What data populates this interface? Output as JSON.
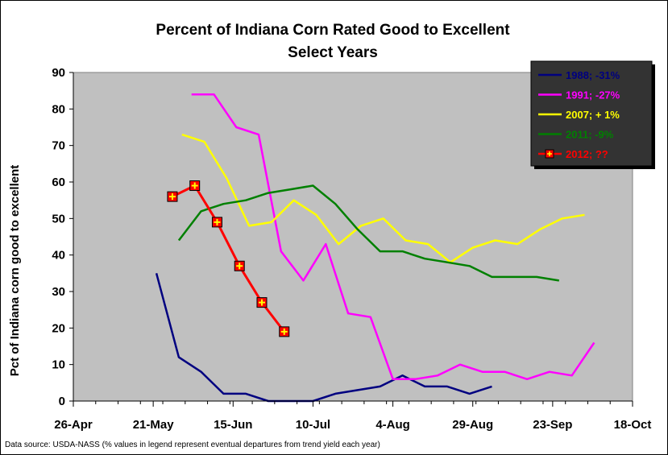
{
  "chart_data": {
    "type": "line",
    "title": "Percent of Indiana Corn Rated Good to Excellent",
    "subtitle": "Select Years",
    "ylabel": "Pct of Indiana corn good to excellent",
    "xlabel": "",
    "ylim": [
      0,
      90
    ],
    "yticks": [
      0,
      10,
      20,
      30,
      40,
      50,
      60,
      70,
      80,
      90
    ],
    "xlim": [
      "26-Apr",
      "18-Oct"
    ],
    "xticks": [
      "26-Apr",
      "21-May",
      "15-Jun",
      "10-Jul",
      "4-Aug",
      "29-Aug",
      "23-Sep",
      "18-Oct"
    ],
    "grid": false,
    "legend_position": "top-right",
    "plot_background": "#c0c0c0",
    "series": [
      {
        "name": "1988; -31%",
        "color": "#000080",
        "marker": "none",
        "x": [
          "22-May",
          "29-May",
          "5-Jun",
          "12-Jun",
          "19-Jun",
          "26-Jun",
          "3-Jul",
          "10-Jul",
          "17-Jul",
          "24-Jul",
          "31-Jul",
          "7-Aug",
          "14-Aug",
          "21-Aug",
          "28-Aug",
          "4-Sep"
        ],
        "values": [
          35,
          12,
          8,
          2,
          2,
          0,
          0,
          0,
          2,
          3,
          4,
          7,
          4,
          4,
          2,
          4
        ]
      },
      {
        "name": "1991; -27%",
        "color": "#ff00ff",
        "marker": "none",
        "x": [
          "2-Jun",
          "9-Jun",
          "16-Jun",
          "23-Jun",
          "30-Jun",
          "7-Jul",
          "14-Jul",
          "21-Jul",
          "28-Jul",
          "4-Aug",
          "11-Aug",
          "18-Aug",
          "25-Aug",
          "1-Sep",
          "8-Sep",
          "15-Sep",
          "22-Sep",
          "29-Sep",
          "6-Oct"
        ],
        "values": [
          84,
          84,
          75,
          73,
          41,
          33,
          43,
          24,
          23,
          6,
          6,
          7,
          10,
          8,
          8,
          6,
          8,
          7,
          16
        ]
      },
      {
        "name": "2007; + 1%",
        "color": "#ffff00",
        "marker": "none",
        "x": [
          "30-May",
          "6-Jun",
          "13-Jun",
          "20-Jun",
          "27-Jun",
          "4-Jul",
          "11-Jul",
          "18-Jul",
          "25-Jul",
          "1-Aug",
          "8-Aug",
          "15-Aug",
          "22-Aug",
          "29-Aug",
          "5-Sep",
          "12-Sep",
          "19-Sep",
          "26-Sep",
          "3-Oct"
        ],
        "values": [
          73,
          71,
          61,
          48,
          49,
          55,
          51,
          43,
          48,
          50,
          44,
          43,
          38,
          42,
          44,
          43,
          47,
          50,
          51
        ]
      },
      {
        "name": "2011; -9%",
        "color": "#008000",
        "marker": "none",
        "x": [
          "29-May",
          "5-Jun",
          "12-Jun",
          "19-Jun",
          "26-Jun",
          "3-Jul",
          "10-Jul",
          "17-Jul",
          "24-Jul",
          "31-Jul",
          "7-Aug",
          "14-Aug",
          "21-Aug",
          "28-Aug",
          "4-Sep",
          "11-Sep",
          "18-Sep",
          "25-Sep"
        ],
        "values": [
          44,
          52,
          54,
          55,
          57,
          58,
          59,
          54,
          47,
          41,
          41,
          39,
          38,
          37,
          34,
          34,
          34,
          33
        ]
      },
      {
        "name": "2012; ??",
        "color": "#ff0000",
        "marker": "square-plus",
        "x": [
          "27-May",
          "3-Jun",
          "10-Jun",
          "17-Jun",
          "24-Jun",
          "1-Jul"
        ],
        "values": [
          56,
          59,
          49,
          37,
          27,
          19
        ]
      }
    ],
    "annotations": [
      "Data source: USDA-NASS (% values in legend represent eventual departures from trend yield each year)"
    ]
  }
}
